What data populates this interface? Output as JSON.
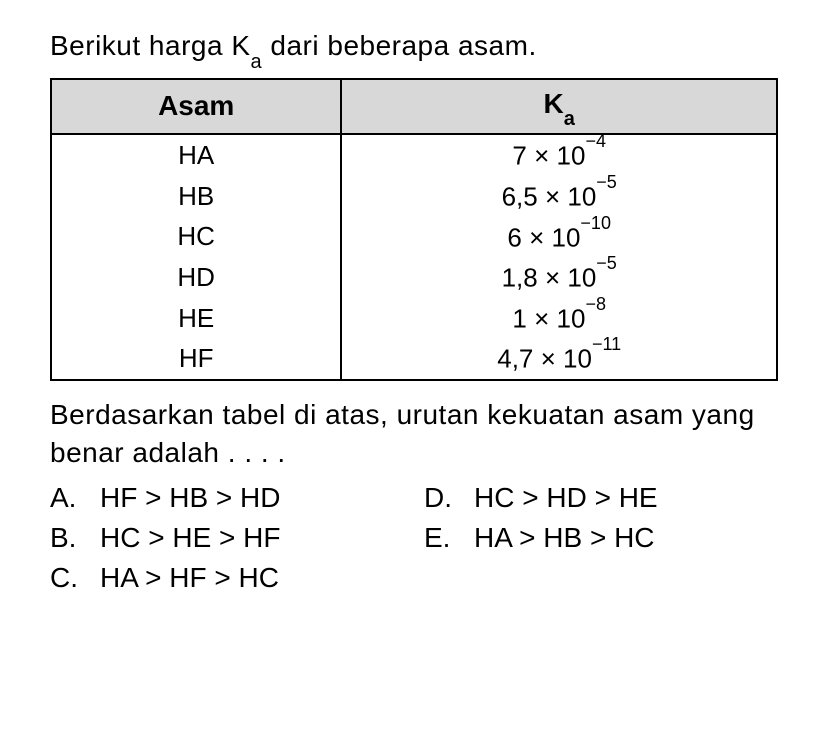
{
  "intro_pre": "Berikut harga K",
  "intro_sub": "a",
  "intro_post": " dari beberapa asam.",
  "table": {
    "header_col1": "Asam",
    "header_col2_pre": "K",
    "header_col2_sub": "a",
    "rows": [
      {
        "asam": "HA",
        "ka_coef": "7 × 10",
        "ka_exp": "−4"
      },
      {
        "asam": "HB",
        "ka_coef": "6,5 × 10",
        "ka_exp": "−5"
      },
      {
        "asam": "HC",
        "ka_coef": "6 × 10",
        "ka_exp": "−10"
      },
      {
        "asam": "HD",
        "ka_coef": "1,8 × 10",
        "ka_exp": "−5"
      },
      {
        "asam": "HE",
        "ka_coef": "1 × 10",
        "ka_exp": "−8"
      },
      {
        "asam": "HF",
        "ka_coef": "4,7 × 10",
        "ka_exp": "−11"
      }
    ]
  },
  "question": "Berdasarkan tabel di atas, urutan kekuatan asam yang benar adalah . . . .",
  "options": {
    "A": {
      "label": "A.",
      "text": "HF > HB > HD"
    },
    "B": {
      "label": "B.",
      "text": "HC > HE > HF"
    },
    "C": {
      "label": "C.",
      "text": "HA > HF > HC"
    },
    "D": {
      "label": "D.",
      "text": "HC > HD > HE"
    },
    "E": {
      "label": "E.",
      "text": "HA > HB > HC"
    }
  },
  "colors": {
    "text": "#000000",
    "background": "#ffffff",
    "header_bg": "#d8d8d8",
    "border": "#000000"
  },
  "fonts": {
    "body_size": 28,
    "sub_size": 20,
    "sup_size": 18
  }
}
